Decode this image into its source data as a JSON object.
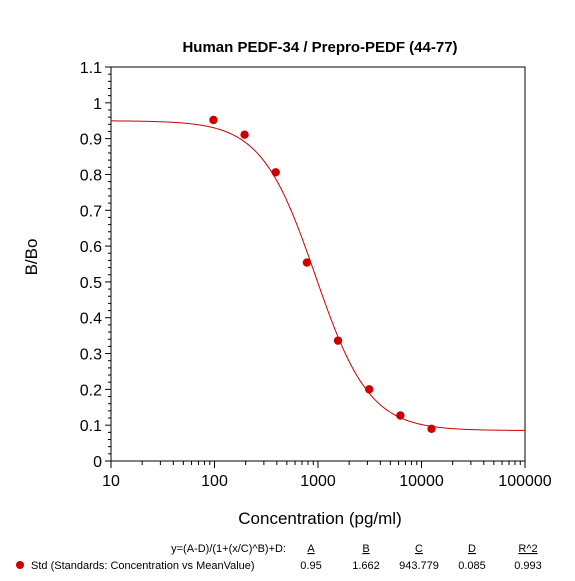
{
  "chart_data": {
    "type": "scatter",
    "title": "Human PEDF-34 / Prepro-PEDF (44-77)",
    "xlabel": "Concentration (pg/ml)",
    "ylabel": "B/Bo",
    "x_scale": "log",
    "xlim": [
      10,
      100000
    ],
    "ylim": [
      0,
      1.1
    ],
    "x_ticks": [
      10,
      100,
      1000,
      10000,
      100000
    ],
    "x_tick_labels": [
      "10",
      "100",
      "1000",
      "10000",
      "100000"
    ],
    "y_ticks": [
      0,
      0.1,
      0.2,
      0.3,
      0.4,
      0.5,
      0.6,
      0.7,
      0.8,
      0.9,
      1,
      1.1
    ],
    "y_tick_labels": [
      "0",
      "0.1",
      "0.2",
      "0.3",
      "0.4",
      "0.5",
      "0.6",
      "0.7",
      "0.8",
      "0.9",
      "1",
      "1.1"
    ],
    "series": [
      {
        "name": "Std (Standards: Concentration vs MeanValue)",
        "x": [
          97.7,
          195.3,
          390.6,
          781.3,
          1562.5,
          3125,
          6250,
          12500
        ],
        "y": [
          0.952,
          0.911,
          0.806,
          0.554,
          0.336,
          0.2,
          0.127,
          0.09
        ],
        "color": "#cc0000"
      }
    ],
    "fit": {
      "equation": "y=(A-D)/(1+(x/C)^B)+D:",
      "params": {
        "A": 0.95,
        "B": 1.662,
        "C": 943.779,
        "D": 0.085
      },
      "color": "#cc0000"
    },
    "legend": {
      "headers": [
        "A",
        "B",
        "C",
        "D",
        "R^2"
      ],
      "values": [
        "0.95",
        "1.662",
        "943.779",
        "0.085",
        "0.993"
      ]
    },
    "grid": false
  }
}
